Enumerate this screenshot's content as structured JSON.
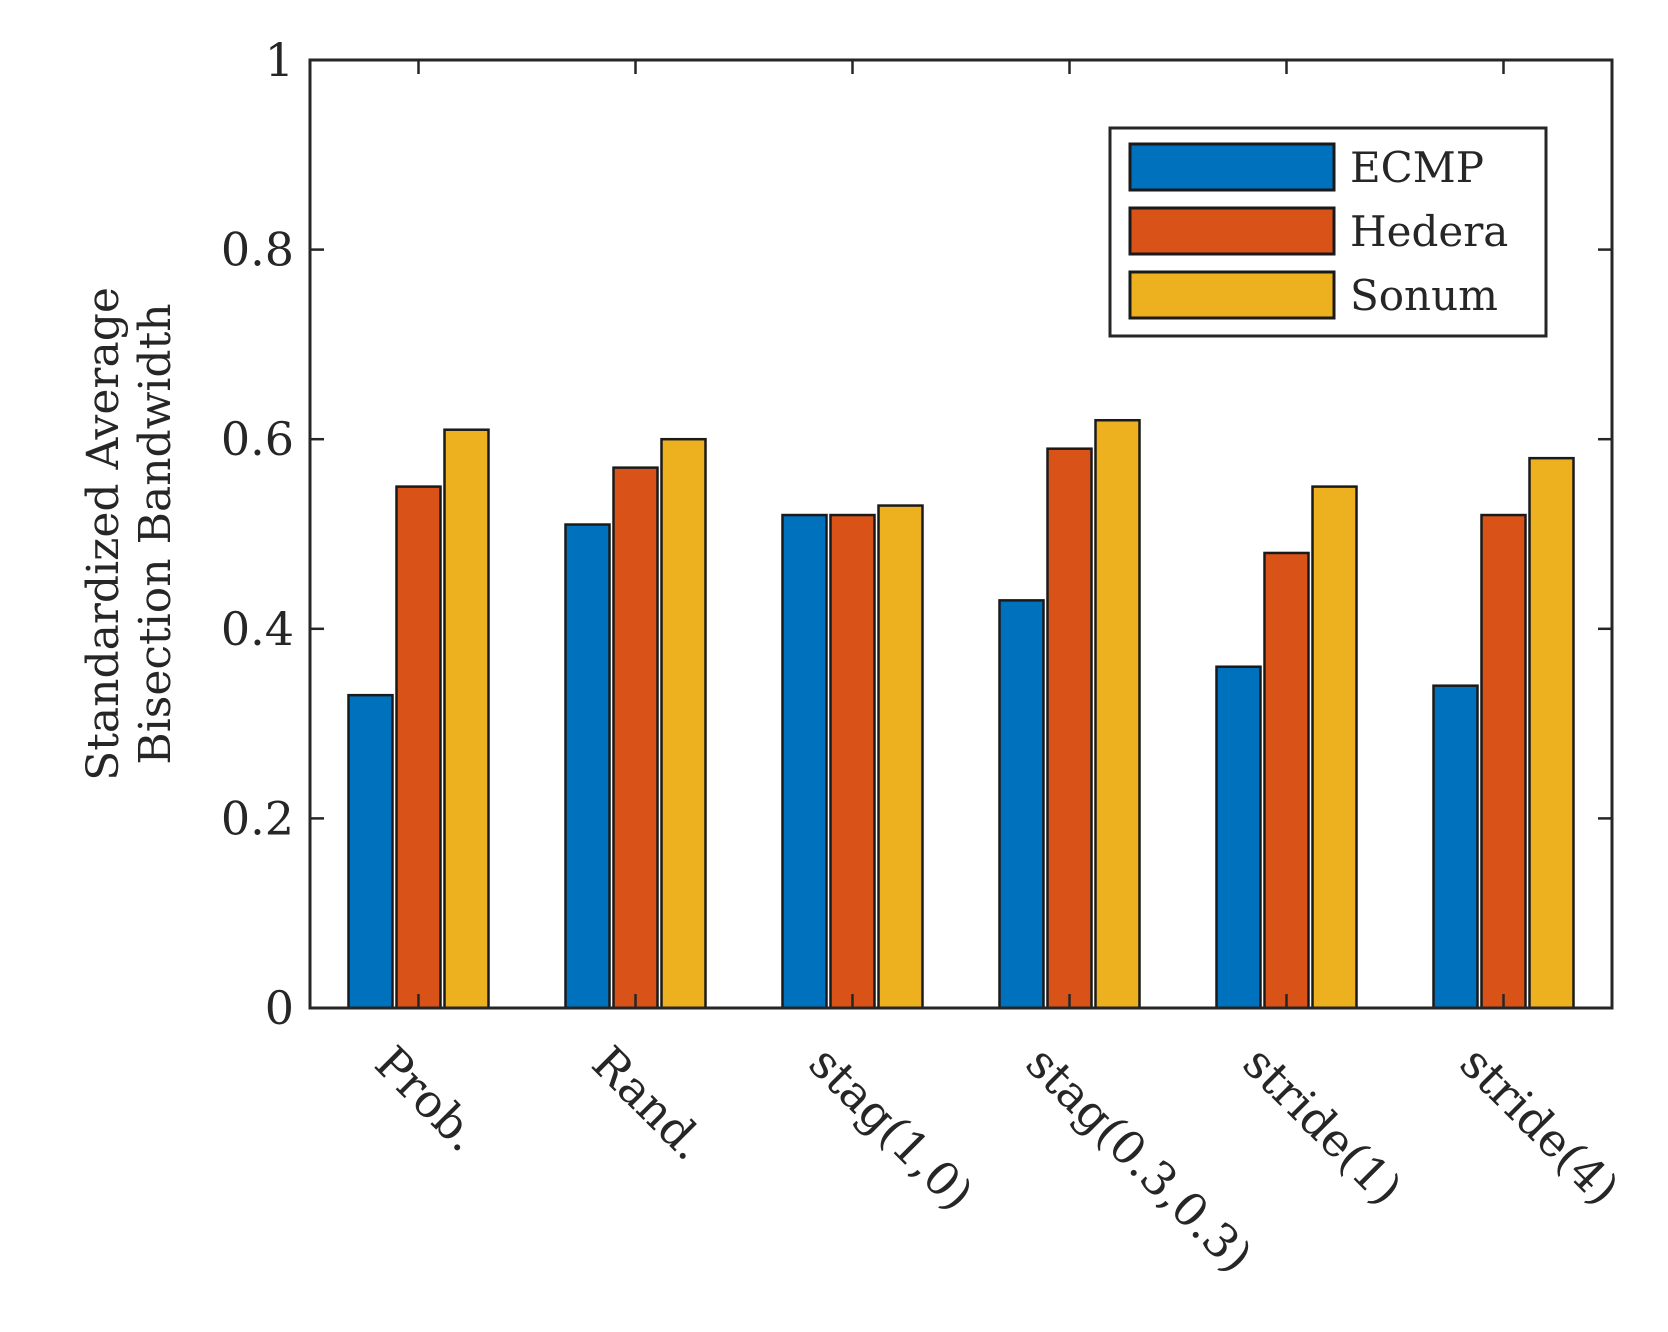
{
  "chart_data": {
    "type": "bar",
    "title": "",
    "xlabel": "",
    "ylabel_lines": [
      "Standardized Average",
      "Bisection Bandwidth"
    ],
    "categories": [
      "Prob.",
      "Rand.",
      "stag(1,0)",
      "stag(0.3,0.3)",
      "stride(1)",
      "stride(4)"
    ],
    "series": [
      {
        "name": "ECMP",
        "color": "#0072BD",
        "values": [
          0.33,
          0.51,
          0.52,
          0.43,
          0.36,
          0.34
        ]
      },
      {
        "name": "Hedera",
        "color": "#D95319",
        "values": [
          0.55,
          0.57,
          0.52,
          0.59,
          0.48,
          0.52
        ]
      },
      {
        "name": "Sonum",
        "color": "#EDB120",
        "values": [
          0.61,
          0.6,
          0.53,
          0.62,
          0.55,
          0.58
        ]
      }
    ],
    "ylim": [
      0,
      1
    ],
    "yticks": [
      0,
      0.2,
      0.4,
      0.6,
      0.8,
      1
    ],
    "ytick_labels": [
      "0",
      "0.2",
      "0.4",
      "0.6",
      "0.8",
      "1"
    ],
    "legend_position": "top-right",
    "grid": false
  }
}
